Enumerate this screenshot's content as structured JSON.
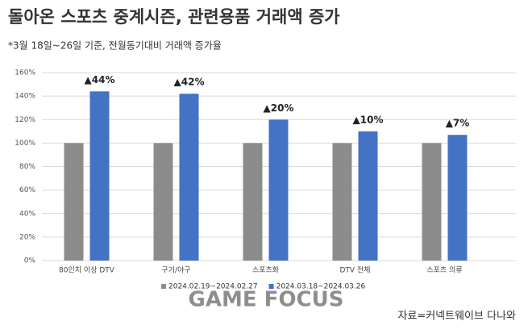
{
  "chart_data": {
    "type": "bar",
    "title": "돌아온 스포츠 중계시즌, 관련용품 거래액 증가",
    "subtitle": "*3월 18일~26일 기준, 전월동기대비 거래액 증가율",
    "categories": [
      "80인치 이상 DTV",
      "구기/야구",
      "스포츠화",
      "DTV 전체",
      "스포츠 의류"
    ],
    "series": [
      {
        "name": "2024.02.19~2024.02.27",
        "color": "#8c8c8c",
        "values": [
          100,
          100,
          100,
          100,
          100
        ]
      },
      {
        "name": "2024.03.18~2024.03.26",
        "color": "#4472c4",
        "values": [
          144,
          142,
          120,
          110,
          107
        ]
      }
    ],
    "annotations": [
      "▲44%",
      "▲42%",
      "▲20%",
      "▲10%",
      "▲7%"
    ],
    "ylim": [
      0,
      160
    ],
    "yticks": [
      {
        "value": 0,
        "label": "0%"
      },
      {
        "value": 20,
        "label": "20%"
      },
      {
        "value": 40,
        "label": "40%"
      },
      {
        "value": 60,
        "label": "60%"
      },
      {
        "value": 80,
        "label": "80%"
      },
      {
        "value": 100,
        "label": "100%"
      },
      {
        "value": 120,
        "label": "120%"
      },
      {
        "value": 140,
        "label": "140%"
      },
      {
        "value": 160,
        "label": "160%"
      }
    ],
    "grid": true,
    "legend": "bottom",
    "source": "자료=커넥트웨이브 다나와"
  },
  "watermark": "GAME FOCUS"
}
